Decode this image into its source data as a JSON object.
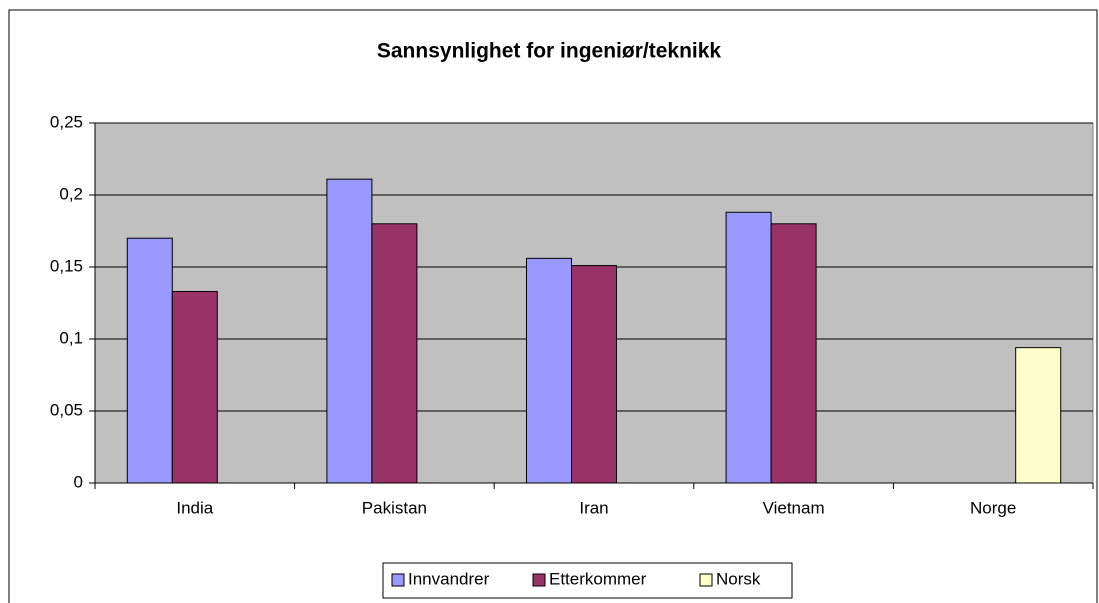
{
  "chart_data": {
    "type": "bar",
    "title": "Sannsynlighet for ingeniør/teknikk",
    "categories": [
      "India",
      "Pakistan",
      "Iran",
      "Vietnam",
      "Norge"
    ],
    "series": [
      {
        "name": "Innvandrer",
        "color": "#9999ff",
        "values": [
          0.17,
          0.211,
          0.156,
          0.188,
          null
        ]
      },
      {
        "name": "Etterkommer",
        "color": "#993366",
        "values": [
          0.133,
          0.18,
          0.151,
          0.18,
          null
        ]
      },
      {
        "name": "Norsk",
        "color": "#ffffcc",
        "values": [
          null,
          null,
          null,
          null,
          0.094
        ]
      }
    ],
    "ylim": [
      0,
      0.25
    ],
    "yticks": [
      0,
      {
        "value": 0.05,
        "label": "0,05"
      },
      {
        "value": 0.1,
        "label": "0,1"
      },
      {
        "value": 0.15,
        "label": "0,15"
      },
      {
        "value": 0.2,
        "label": "0,2"
      },
      {
        "value": 0.25,
        "label": "0,25"
      }
    ],
    "grid": true,
    "legend": "bottom"
  }
}
